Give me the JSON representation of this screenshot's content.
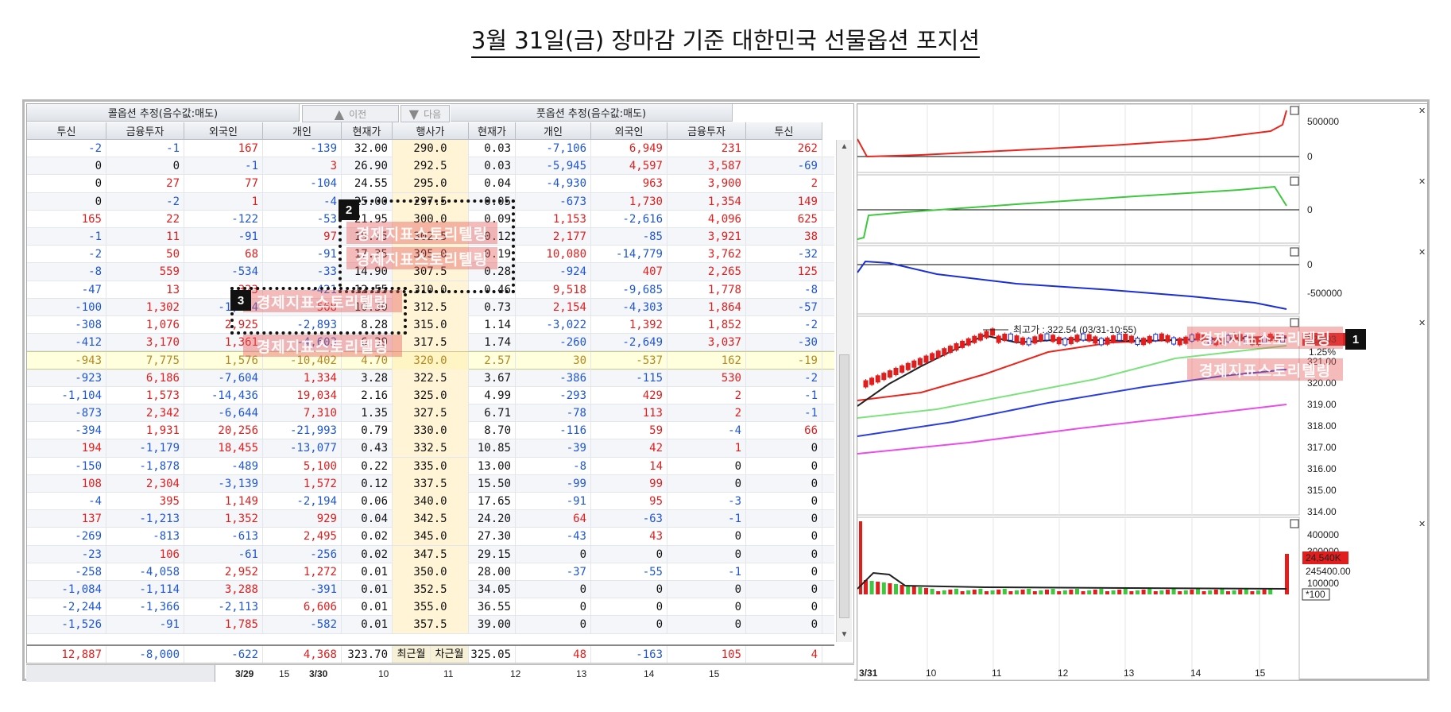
{
  "page_title": "3월 31일(금) 장마감 기준 대한민국 선물옵션 포지션",
  "table": {
    "call_group_header": "콜옵션 추정(음수값:매도)",
    "put_group_header": "풋옵션 추정(음수값:매도)",
    "prev_label": "이전",
    "next_label": "다음",
    "columns": [
      "투신",
      "금융투자",
      "외국인",
      "개인",
      "현재가",
      "행사가",
      "현재가",
      "개인",
      "외국인",
      "금융투자",
      "투신"
    ],
    "rows": [
      [
        "-2",
        "-1",
        "167",
        "-139",
        "32.00",
        "290.0",
        "0.03",
        "-7,106",
        "6,949",
        "231",
        "262"
      ],
      [
        "0",
        "0",
        "-1",
        "3",
        "26.90",
        "292.5",
        "0.03",
        "-5,945",
        "4,597",
        "3,587",
        "-69"
      ],
      [
        "0",
        "27",
        "77",
        "-104",
        "24.55",
        "295.0",
        "0.04",
        "-4,930",
        "963",
        "3,900",
        "2"
      ],
      [
        "0",
        "-2",
        "1",
        "-4",
        "25.00",
        "297.5",
        "0.05",
        "-673",
        "1,730",
        "1,354",
        "149"
      ],
      [
        "165",
        "22",
        "-122",
        "-53",
        "21.95",
        "300.0",
        "0.09",
        "1,153",
        "-2,616",
        "4,096",
        "625"
      ],
      [
        "-1",
        "11",
        "-91",
        "97",
        "19.75",
        "302.5",
        "0.12",
        "2,177",
        "-85",
        "3,921",
        "38"
      ],
      [
        "-2",
        "50",
        "68",
        "-91",
        "17.35",
        "305.0",
        "0.19",
        "10,080",
        "-14,779",
        "3,762",
        "-32"
      ],
      [
        "-8",
        "559",
        "-534",
        "-33",
        "14.90",
        "307.5",
        "0.28",
        "-924",
        "407",
        "2,265",
        "125"
      ],
      [
        "-47",
        "13",
        "323",
        "-421",
        "12.55",
        "310.0",
        "0.46",
        "9,518",
        "-9,685",
        "1,778",
        "-8"
      ],
      [
        "-100",
        "1,302",
        "-1,724",
        "568",
        "10.30",
        "312.5",
        "0.73",
        "2,154",
        "-4,303",
        "1,864",
        "-57"
      ],
      [
        "-308",
        "1,076",
        "2,925",
        "-2,893",
        "8.28",
        "315.0",
        "1.14",
        "-3,022",
        "1,392",
        "1,852",
        "-2"
      ],
      [
        "-412",
        "3,170",
        "1,361",
        "-4,603",
        "6.39",
        "317.5",
        "1.74",
        "-260",
        "-2,649",
        "3,037",
        "-30"
      ],
      [
        "-943",
        "7,775",
        "1,576",
        "-10,402",
        "4.70",
        "320.0",
        "2.57",
        "30",
        "-537",
        "162",
        "-19"
      ],
      [
        "-923",
        "6,186",
        "-7,604",
        "1,334",
        "3.28",
        "322.5",
        "3.67",
        "-386",
        "-115",
        "530",
        "-2"
      ],
      [
        "-1,104",
        "1,573",
        "-14,436",
        "19,034",
        "2.16",
        "325.0",
        "4.99",
        "-293",
        "429",
        "2",
        "-1"
      ],
      [
        "-873",
        "2,342",
        "-6,644",
        "7,310",
        "1.35",
        "327.5",
        "6.71",
        "-78",
        "113",
        "2",
        "-1"
      ],
      [
        "-394",
        "1,931",
        "20,256",
        "-21,993",
        "0.79",
        "330.0",
        "8.70",
        "-116",
        "59",
        "-4",
        "66"
      ],
      [
        "194",
        "-1,179",
        "18,455",
        "-13,077",
        "0.43",
        "332.5",
        "10.85",
        "-39",
        "42",
        "1",
        "0"
      ],
      [
        "-150",
        "-1,878",
        "-489",
        "5,100",
        "0.22",
        "335.0",
        "13.00",
        "-8",
        "14",
        "0",
        "0"
      ],
      [
        "108",
        "2,304",
        "-3,139",
        "1,572",
        "0.12",
        "337.5",
        "15.50",
        "-99",
        "99",
        "0",
        "0"
      ],
      [
        "-4",
        "395",
        "1,149",
        "-2,194",
        "0.06",
        "340.0",
        "17.65",
        "-91",
        "95",
        "-3",
        "0"
      ],
      [
        "137",
        "-1,213",
        "1,352",
        "929",
        "0.04",
        "342.5",
        "24.20",
        "64",
        "-63",
        "-1",
        "0"
      ],
      [
        "-269",
        "-813",
        "-613",
        "2,495",
        "0.02",
        "345.0",
        "27.30",
        "-43",
        "43",
        "0",
        "0"
      ],
      [
        "-23",
        "106",
        "-61",
        "-256",
        "0.02",
        "347.5",
        "29.15",
        "0",
        "0",
        "0",
        "0"
      ],
      [
        "-258",
        "-4,058",
        "2,952",
        "1,272",
        "0.01",
        "350.0",
        "28.00",
        "-37",
        "-55",
        "-1",
        "0"
      ],
      [
        "-1,084",
        "-1,114",
        "3,288",
        "-391",
        "0.01",
        "352.5",
        "34.05",
        "0",
        "0",
        "0",
        "0"
      ],
      [
        "-2,244",
        "-1,366",
        "-2,113",
        "6,606",
        "0.01",
        "355.0",
        "36.55",
        "0",
        "0",
        "0",
        "0"
      ],
      [
        "-1,526",
        "-91",
        "1,785",
        "-582",
        "0.01",
        "357.5",
        "39.00",
        "0",
        "0",
        "0",
        "0"
      ]
    ],
    "highlight_row_index": 12,
    "totals": [
      "12,887",
      "-8,000",
      "-622",
      "4,368",
      "323.70",
      "최근월",
      "차근월",
      "325.05",
      "48",
      "-163",
      "105",
      "4"
    ]
  },
  "time_axis": {
    "labels": [
      "3/29",
      "15",
      "3/30",
      "10",
      "11",
      "12",
      "13",
      "14",
      "15"
    ]
  },
  "overlays": {
    "badges": [
      "1",
      "2",
      "3"
    ],
    "watermark_text": "경제지표스토리텔링"
  },
  "chart": {
    "panel1_labels": [
      "500000",
      "0"
    ],
    "panel2_labels": [
      "0"
    ],
    "panel3_labels": [
      "0",
      "-500000"
    ],
    "price_labels": [
      "322.03",
      "1.25%",
      "321.00",
      "320.00",
      "319.00",
      "318.00",
      "317.00",
      "316.00",
      "315.00",
      "314.00"
    ],
    "high_annotation": "최고가 : 322.54 (03/31-10:55)",
    "volume_labels": [
      "400000",
      "300000",
      "24,540K",
      "245400.00",
      "100000",
      "*100"
    ],
    "x_labels": [
      "3/31",
      "10",
      "11",
      "12",
      "13",
      "14",
      "15"
    ],
    "colors": {
      "call": "#e8261d",
      "put_green": "#3ec83e",
      "put_blue": "#1a2fd6"
    }
  }
}
